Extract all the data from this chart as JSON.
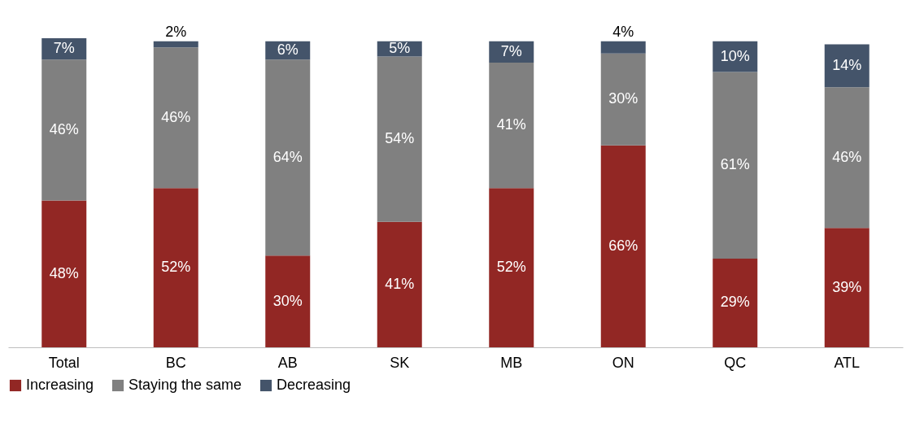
{
  "chart_data": {
    "type": "bar",
    "stacked": true,
    "categories": [
      "Total",
      "BC",
      "AB",
      "SK",
      "MB",
      "ON",
      "QC",
      "ATL"
    ],
    "series": [
      {
        "name": "Increasing",
        "color": "#922724",
        "values": [
          48,
          52,
          30,
          41,
          52,
          66,
          29,
          39
        ],
        "value_labels": [
          "48%",
          "52%",
          "30%",
          "41%",
          "52%",
          "66%",
          "29%",
          "39%"
        ]
      },
      {
        "name": "Staying the same",
        "color": "#808080",
        "values": [
          46,
          46,
          64,
          54,
          41,
          30,
          61,
          46
        ],
        "value_labels": [
          "46%",
          "46%",
          "64%",
          "54%",
          "41%",
          "30%",
          "61%",
          "46%"
        ]
      },
      {
        "name": "Decreasing",
        "color": "#44546a",
        "values": [
          7,
          2,
          6,
          5,
          7,
          4,
          10,
          14
        ],
        "value_labels": [
          "7%",
          "2%",
          "6%",
          "5%",
          "7%",
          "4%",
          "10%",
          "14%"
        ]
      }
    ],
    "tick_labels": "x",
    "grid": false,
    "legend": "bottom"
  }
}
